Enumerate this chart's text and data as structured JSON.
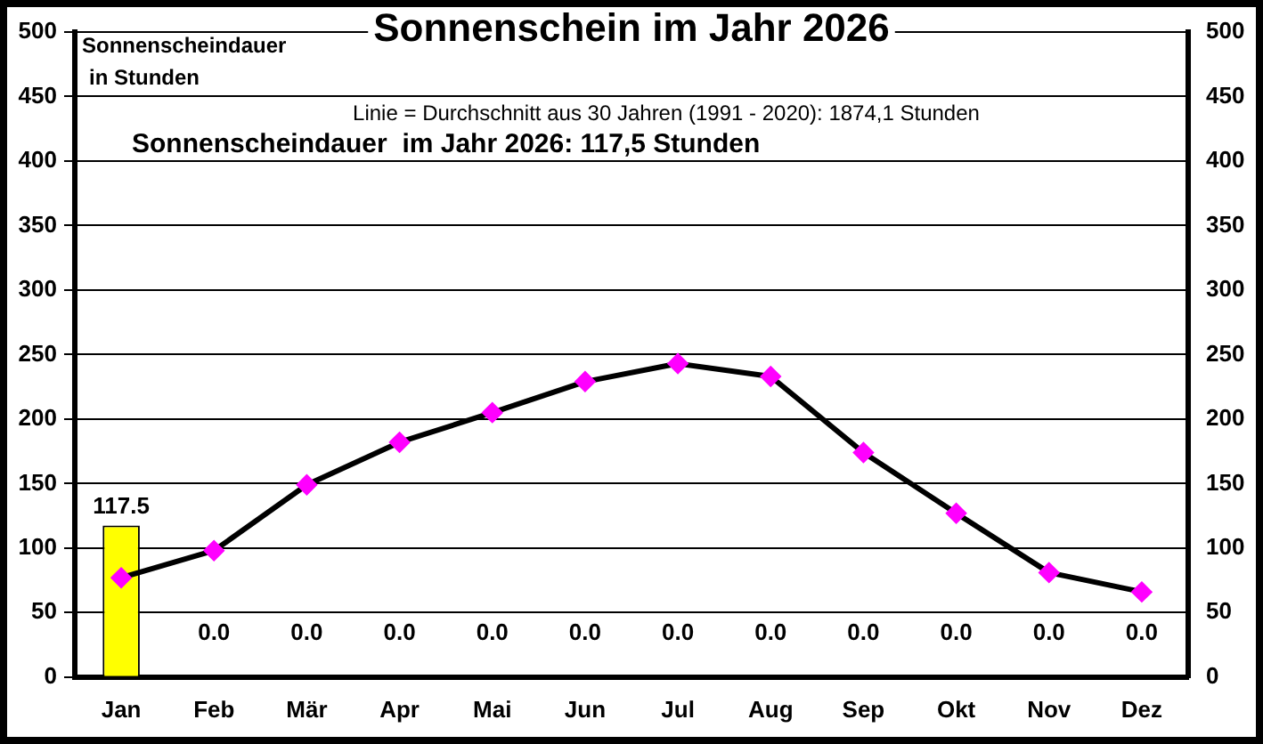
{
  "chart_data": {
    "type": "bar",
    "title": "Sonnenschein im Jahr 2026",
    "ylabel": "Sonnenscheindauer in Stunden",
    "annotations": [
      "Linie = Durchschnitt aus 30 Jahren (1991 - 2020): 1874,1 Stunden",
      "Sonnenscheindauer  im Jahr 2026: 117,5 Stunden"
    ],
    "categories": [
      "Jan",
      "Feb",
      "Mär",
      "Apr",
      "Mai",
      "Jun",
      "Jul",
      "Aug",
      "Sep",
      "Okt",
      "Nov",
      "Dez"
    ],
    "series": [
      {
        "color": "#ffff00",
        "values": [
          117.5,
          0,
          0,
          0,
          0,
          0,
          0,
          0,
          0,
          0,
          0,
          0
        ],
        "value_labels": [
          "117.5",
          "0.0",
          "0.0",
          "0.0",
          "0.0",
          "0.0",
          "0.0",
          "0.0",
          "0.0",
          "0.0",
          "0.0",
          "0.0"
        ]
      },
      {
        "type": "line",
        "color": "#000000",
        "colors": [
          "#ff00ff",
          "#ff00ff",
          "#ff00ff",
          "#ff00ff",
          "#ff00ff",
          "#ff00ff",
          "#ff00ff",
          "#ff00ff",
          "#ff00ff",
          "#ff00ff",
          "#ff00ff",
          "#ff00ff"
        ],
        "marker": "diamond",
        "values": [
          77,
          98,
          149,
          182,
          205,
          229,
          243,
          233,
          174,
          127,
          81,
          66
        ]
      }
    ],
    "ylim": [
      0,
      500
    ],
    "yticks": [
      0,
      50,
      100,
      150,
      200,
      250,
      300,
      350,
      400,
      450,
      500
    ],
    "y2lim": [
      0,
      500
    ],
    "y2ticks": [
      0,
      50,
      100,
      150,
      200,
      250,
      300,
      350,
      400,
      450,
      500
    ],
    "grid": "y",
    "legend": false
  }
}
